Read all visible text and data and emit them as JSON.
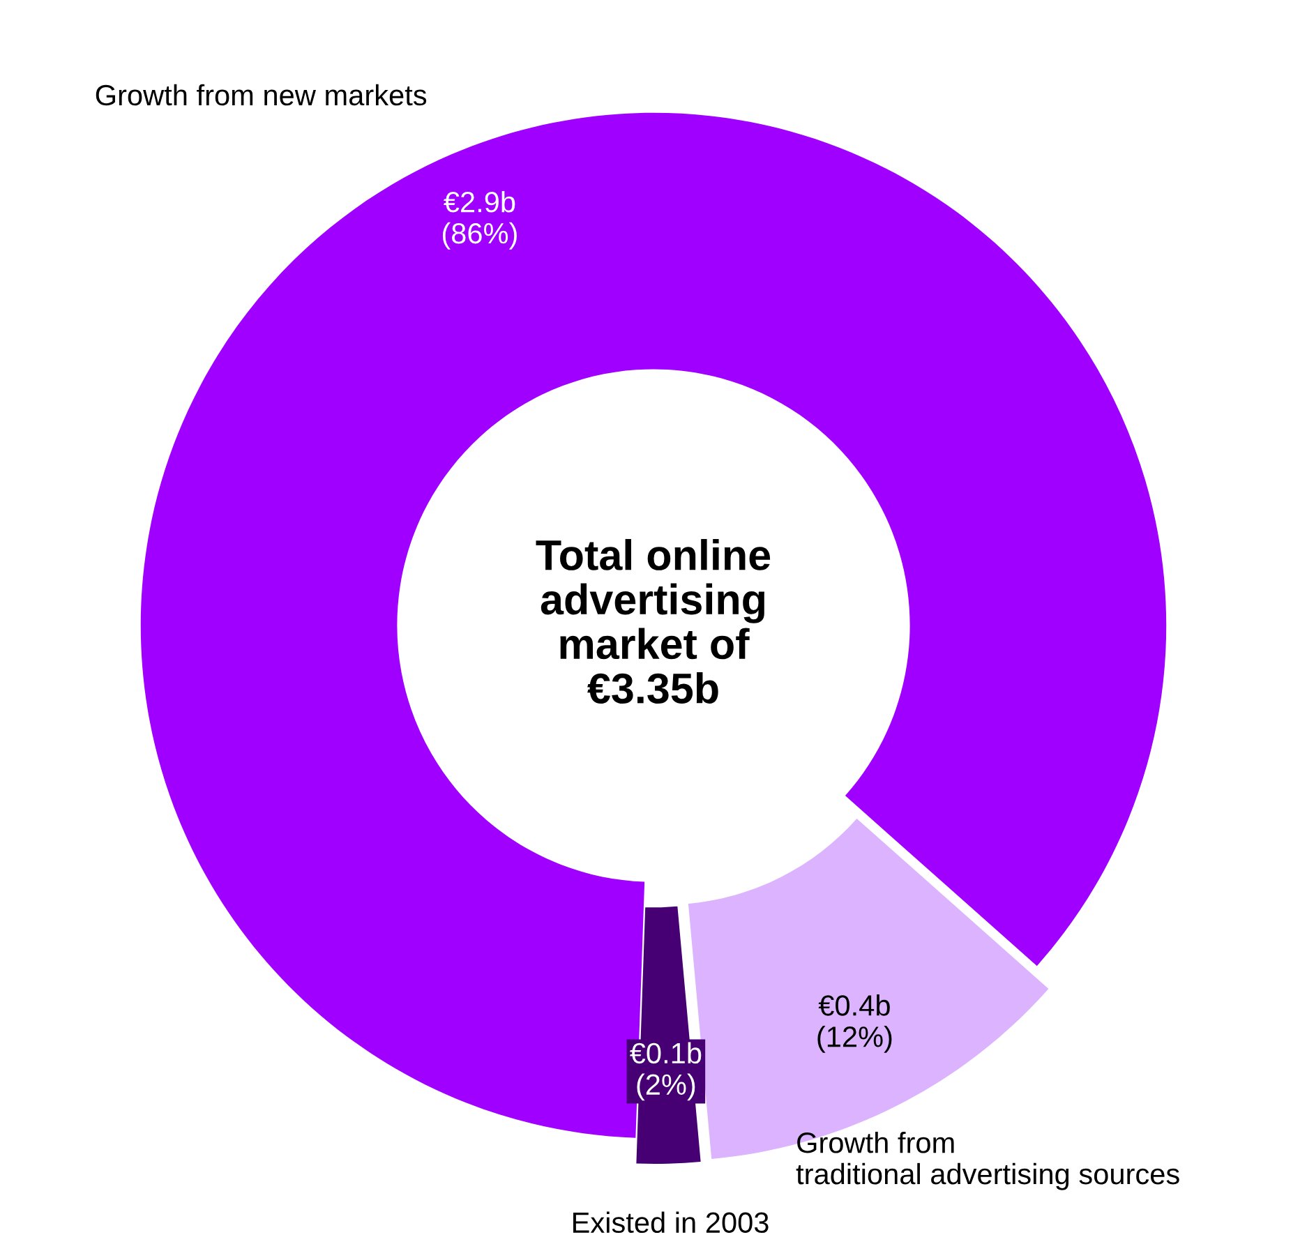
{
  "chart_data": {
    "type": "donut",
    "title": "Total online advertising market of €3.35b",
    "categories": [
      "Growth from new markets",
      "Growth from traditional advertising sources",
      "Existed in 2003"
    ],
    "values": [
      86,
      12,
      2
    ],
    "value_labels": [
      "€2.9b\n(86%)",
      "€0.4b\n(12%)",
      "€0.1b\n(2%)"
    ],
    "colors": [
      "#a000ff",
      "#dcb3ff",
      "#460073"
    ],
    "legend": false
  }
}
